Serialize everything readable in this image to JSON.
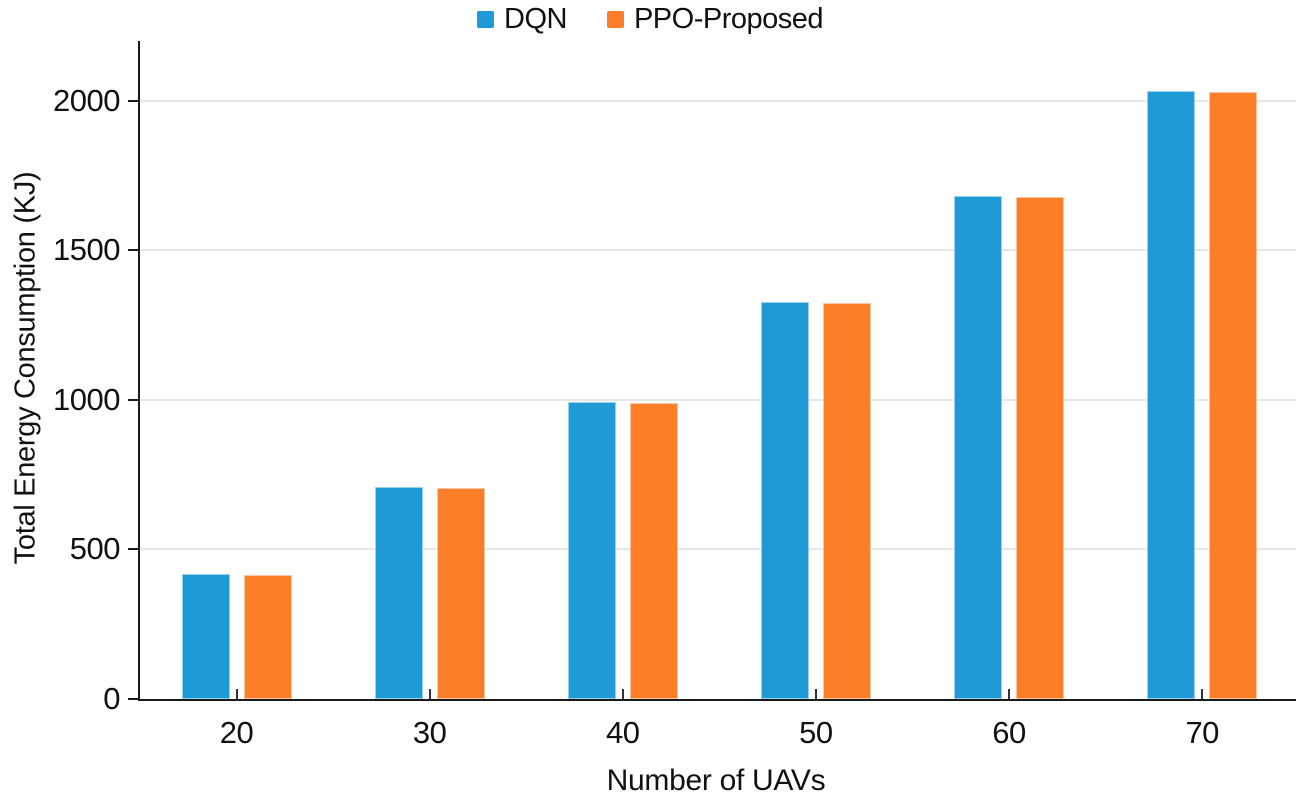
{
  "figure": {
    "background": "#ffffff",
    "axis_color": "#1a1a1a",
    "gridline_color": "#e7e7e7"
  },
  "legend": {
    "position": "top-center",
    "items": [
      {
        "label": "DQN",
        "swatch": "blue-square-icon",
        "color": "#1f9ad6"
      },
      {
        "label": "PPO-Proposed",
        "swatch": "orange-square-icon",
        "color": "#fd7e28"
      }
    ]
  },
  "chart_data": {
    "type": "bar",
    "title": "",
    "xlabel": "Number of UAVs",
    "ylabel": "Total Energy Consumption (KJ)",
    "categories": [
      "20",
      "30",
      "40",
      "50",
      "60",
      "70"
    ],
    "series": [
      {
        "name": "DQN",
        "color": "#1f9ad6",
        "values": [
          418,
          710,
          993,
          1328,
          1682,
          2033
        ]
      },
      {
        "name": "PPO-Proposed",
        "color": "#fd7e28",
        "values": [
          414,
          706,
          989,
          1323,
          1678,
          2030
        ]
      }
    ],
    "ylim": [
      0,
      2200
    ],
    "yticks": [
      0,
      500,
      1000,
      1500,
      2000
    ],
    "grid": "horizontal",
    "legend_position": "top-center"
  }
}
